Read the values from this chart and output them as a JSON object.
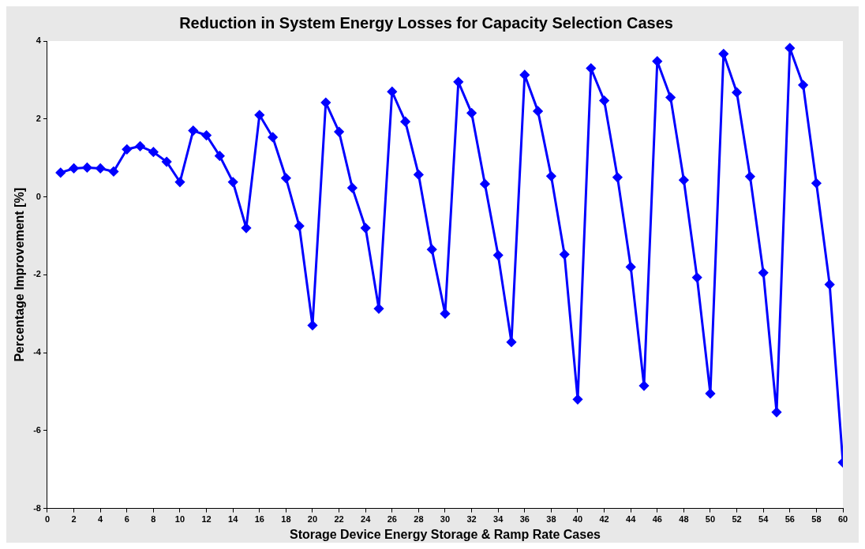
{
  "chart_data": {
    "type": "line",
    "title": "Reduction in System Energy Losses for Capacity Selection Cases",
    "xlabel": "Storage Device Energy Storage & Ramp Rate Cases",
    "ylabel": "Percentage Improvement [%]",
    "x": [
      1,
      2,
      3,
      4,
      5,
      6,
      7,
      8,
      9,
      10,
      11,
      12,
      13,
      14,
      15,
      16,
      17,
      18,
      19,
      20,
      21,
      22,
      23,
      24,
      25,
      26,
      27,
      28,
      29,
      30,
      31,
      32,
      33,
      34,
      35,
      36,
      37,
      38,
      39,
      40,
      41,
      42,
      43,
      44,
      45,
      46,
      47,
      48,
      49,
      50,
      51,
      52,
      53,
      54,
      55,
      56,
      57,
      58,
      59,
      60
    ],
    "series": [
      {
        "color": "#0000ff",
        "values": [
          0.62,
          0.73,
          0.75,
          0.73,
          0.65,
          1.22,
          1.3,
          1.15,
          0.9,
          0.38,
          1.7,
          1.58,
          1.05,
          0.38,
          -0.8,
          2.1,
          1.53,
          0.48,
          -0.75,
          -3.3,
          2.42,
          1.67,
          0.23,
          -0.8,
          -2.87,
          2.7,
          1.93,
          0.57,
          -1.35,
          -3.0,
          2.95,
          2.15,
          0.33,
          -1.5,
          -3.73,
          3.13,
          2.2,
          0.53,
          -1.48,
          -5.2,
          3.3,
          2.47,
          0.5,
          -1.8,
          -4.85,
          3.48,
          2.55,
          0.43,
          -2.07,
          -5.05,
          3.67,
          2.68,
          0.52,
          -1.95,
          -5.53,
          3.82,
          2.87,
          0.35,
          -2.25,
          -6.82
        ]
      }
    ],
    "xlim": [
      0,
      60
    ],
    "xticks": [
      0,
      2,
      4,
      6,
      8,
      10,
      12,
      14,
      16,
      18,
      20,
      22,
      24,
      26,
      28,
      30,
      32,
      34,
      36,
      38,
      40,
      42,
      44,
      46,
      48,
      50,
      52,
      54,
      56,
      58,
      60
    ],
    "ylim": [
      -8,
      4
    ],
    "yticks": [
      -8,
      -6,
      -4,
      -2,
      0,
      2,
      4
    ],
    "grid": false,
    "legend": false,
    "marker": "diamond",
    "line_style": "solid"
  }
}
